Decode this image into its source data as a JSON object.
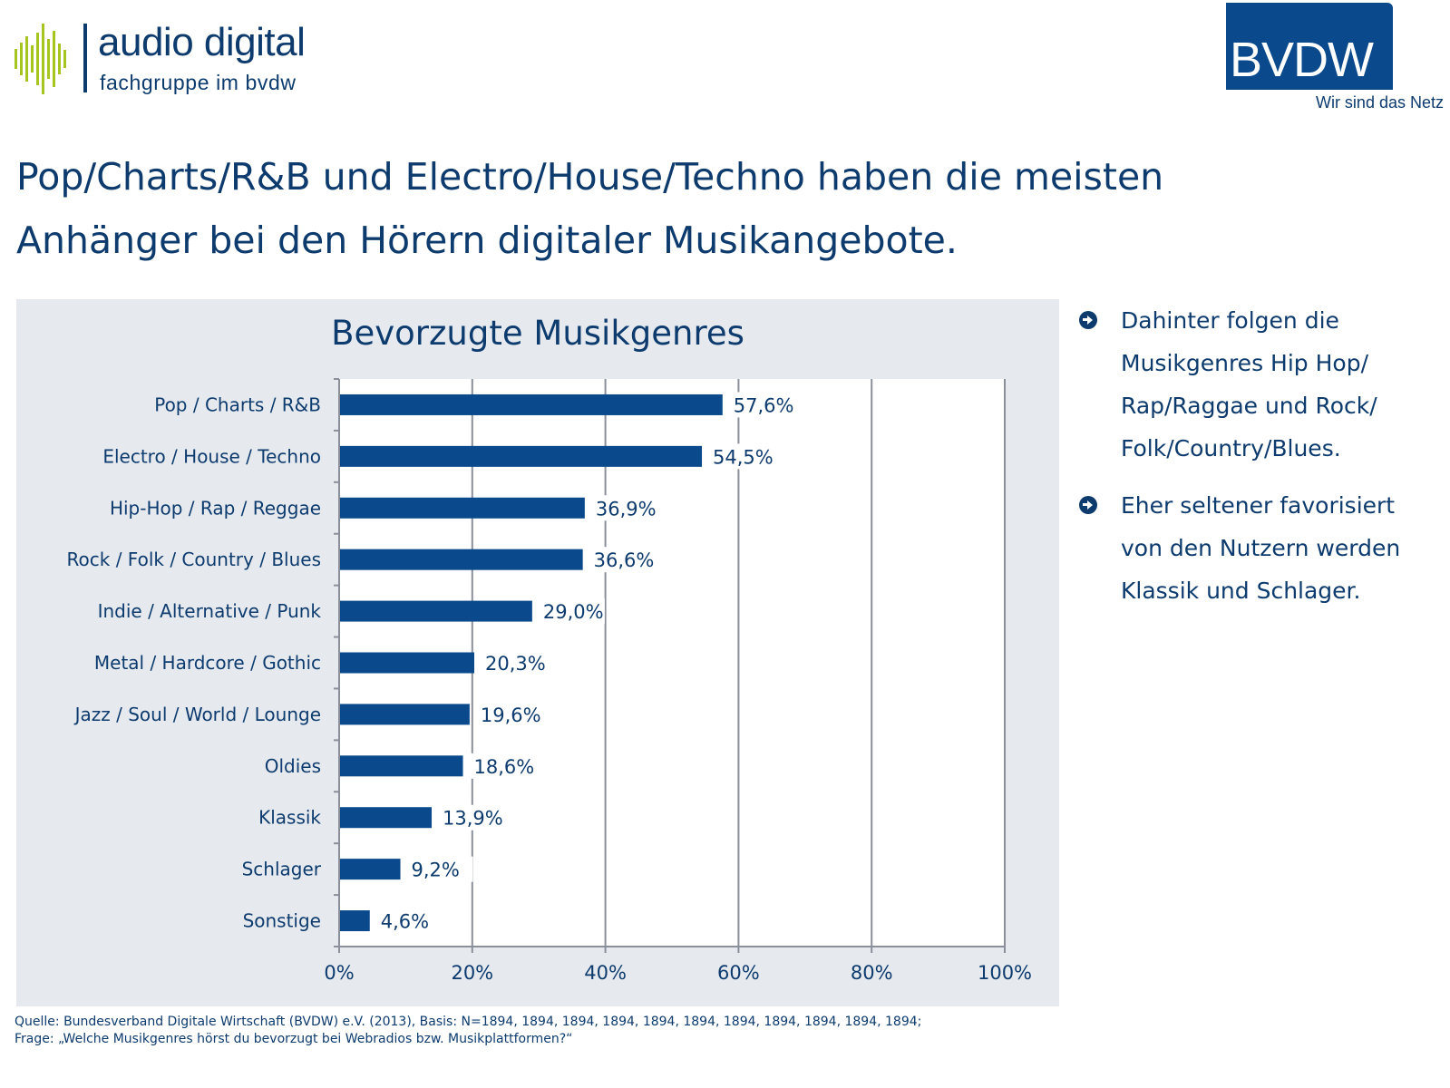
{
  "header": {
    "logo_left": {
      "title": "audio digital",
      "subtitle": "fachgruppe im bvdw"
    },
    "logo_right": {
      "title": "BVDW",
      "tagline": "Wir sind das Netz"
    }
  },
  "headline": "Pop/Charts/R&B und Electro/House/Techno haben die meisten Anhänger bei den Hörern digitaler Musikangebote.",
  "colors": {
    "bar": "#0a4a8c",
    "text": "#0d3b6e",
    "panel": "#e6eaef",
    "accent_green": "#a7c520"
  },
  "bullets": [
    {
      "icon": "arrow-circle-right-icon",
      "text": "Dahinter folgen die Musikgenres Hip Hop/ Rap/Raggae und Rock/ Folk/Country/Blues."
    },
    {
      "icon": "arrow-circle-right-icon",
      "text": "Eher seltener favorisiert von den Nutzern werden Klassik und Schlager."
    }
  ],
  "footer": {
    "source": "Quelle: Bundesverband Digitale Wirtschaft (BVDW) e.V. (2013), Basis: N=1894, 1894, 1894, 1894, 1894, 1894, 1894, 1894, 1894, 1894, 1894;",
    "question": "Frage: „Welche Musikgenres hörst du bevorzugt bei Webradios bzw. Musikplattformen?“"
  },
  "chart_data": {
    "type": "bar",
    "orientation": "horizontal",
    "title": "Bevorzugte Musikgenres",
    "xlabel": "",
    "ylabel": "",
    "categories": [
      "Pop / Charts / R&B",
      "Electro / House / Techno",
      "Hip-Hop / Rap / Reggae",
      "Rock / Folk / Country / Blues",
      "Indie / Alternative / Punk",
      "Metal / Hardcore / Gothic",
      "Jazz / Soul / World / Lounge",
      "Oldies",
      "Klassik",
      "Schlager",
      "Sonstige"
    ],
    "values": [
      57.6,
      54.5,
      36.9,
      36.6,
      29.0,
      20.3,
      19.6,
      18.6,
      13.9,
      9.2,
      4.6
    ],
    "value_labels": [
      "57,6%",
      "54,5%",
      "36,9%",
      "36,6%",
      "29,0%",
      "20,3%",
      "19,6%",
      "18,6%",
      "13,9%",
      "9,2%",
      "4,6%"
    ],
    "xlim": [
      0,
      100
    ],
    "xticks": [
      0,
      20,
      40,
      60,
      80,
      100
    ],
    "xtick_labels": [
      "0%",
      "20%",
      "40%",
      "60%",
      "80%",
      "100%"
    ],
    "grid": true,
    "legend": "none"
  }
}
